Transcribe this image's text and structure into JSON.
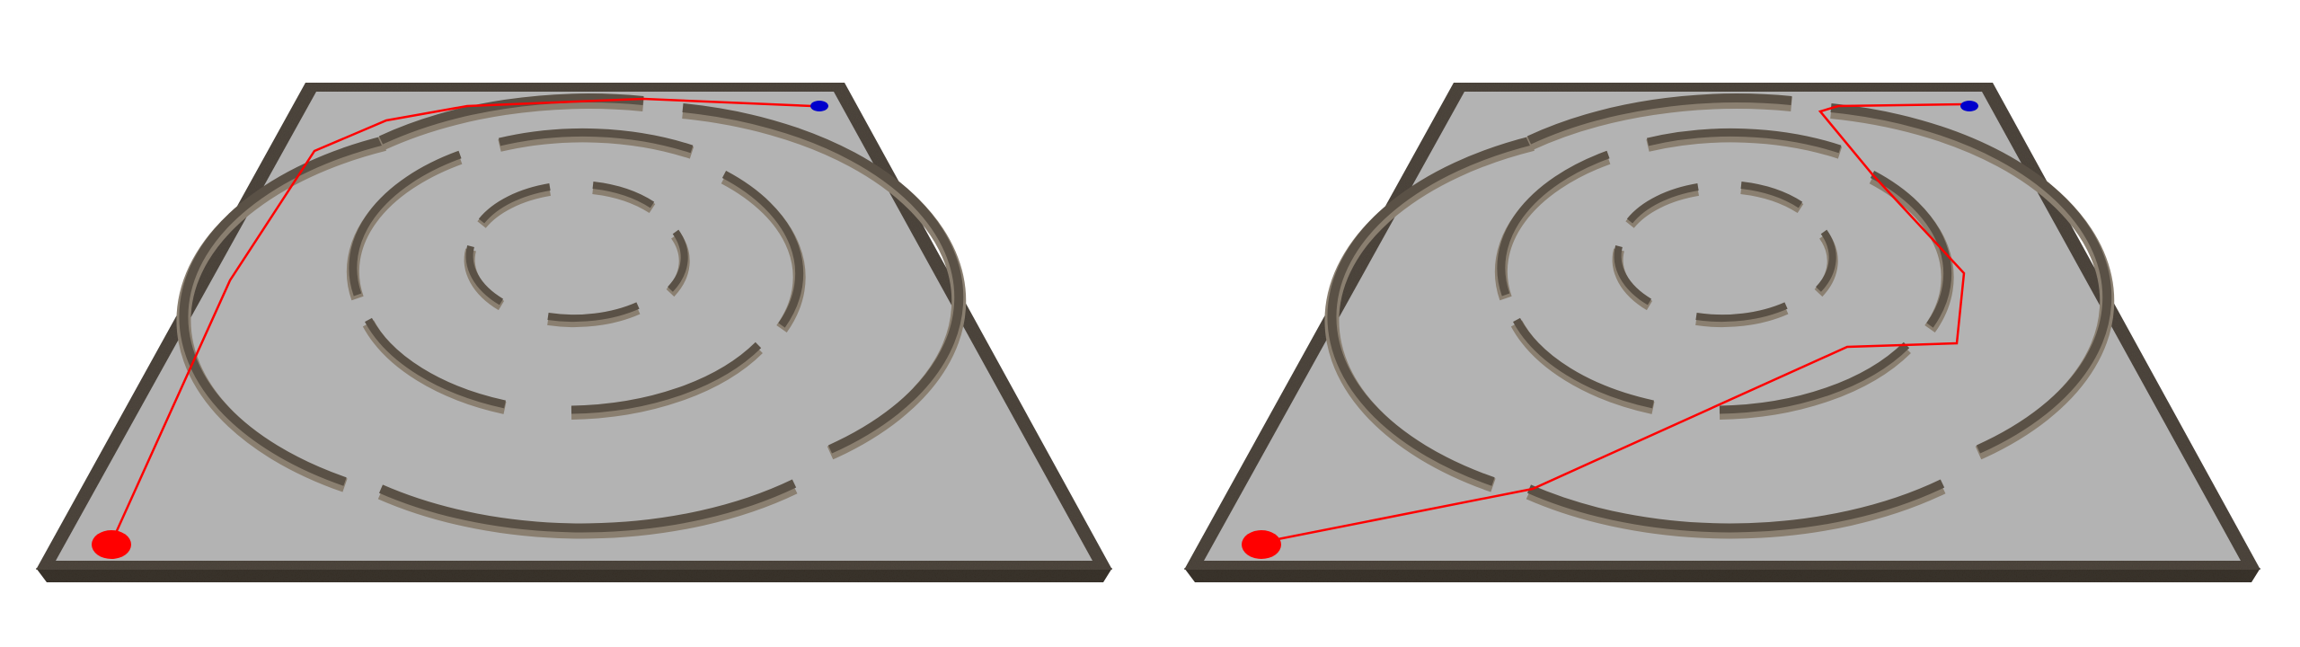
{
  "colors": {
    "background": "#ffffff",
    "floor": "#b3b3b3",
    "frame": "#4e463d",
    "frame_dark": "#2e2822",
    "wall_top": "#5a5146",
    "wall_side": "#8a7f70",
    "path": "#ff0000",
    "start_marker": "#ff0000",
    "goal_marker": "#0000cc"
  },
  "panels": [
    {
      "id": "left",
      "start_marker": "red-start-disc",
      "goal_marker": "blue-goal-disc",
      "path_style": "red-polyline"
    },
    {
      "id": "right",
      "start_marker": "red-start-disc",
      "goal_marker": "blue-goal-disc",
      "path_style": "red-polyline"
    }
  ]
}
